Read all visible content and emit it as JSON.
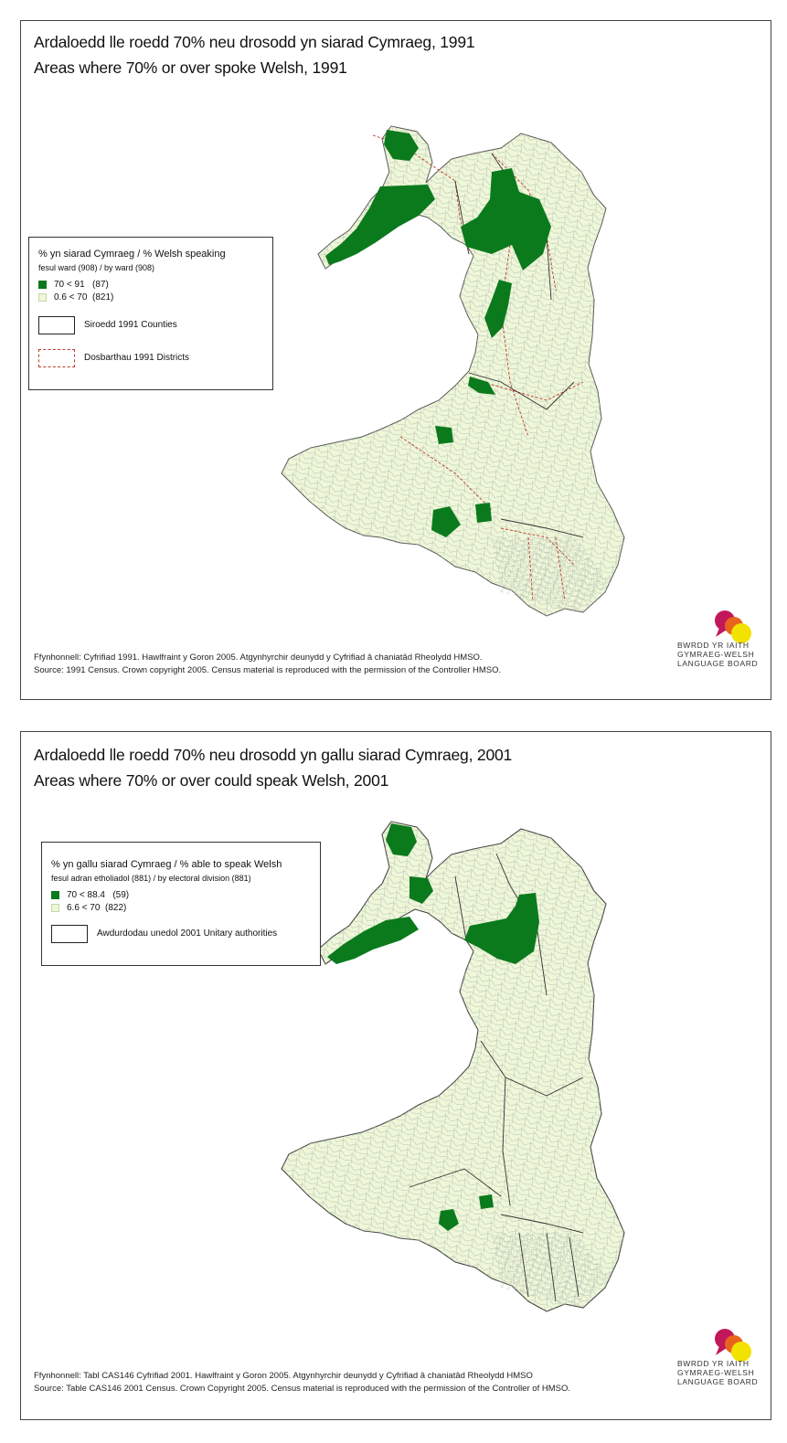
{
  "map_1991": {
    "title_cy": "Ardaloedd lle roedd 70% neu drosodd yn siarad Cymraeg, 1991",
    "title_en": "Areas where 70% or over spoke Welsh, 1991",
    "legend": {
      "title": "% yn siarad Cymraeg / % Welsh speaking",
      "subtitle": "fesul ward (908) / by ward (908)",
      "classes": [
        {
          "range": "70   < 91",
          "count": "(87)",
          "color": "#0b7a1d"
        },
        {
          "range": "0.6 < 70",
          "count": "(821)",
          "color": "#eef7d8"
        }
      ],
      "boundaries": [
        {
          "label": "Siroedd 1991 Counties",
          "style": "solid-black"
        },
        {
          "label": "Dosbarthau 1991 Districts",
          "style": "dashed-red"
        }
      ]
    },
    "source_cy": "Ffynhonnell: Cyfrifiad 1991. Hawlfraint y Goron 2005. Atgynhyrchir deunydd y Cyfrifiad â chaniatâd Rheolydd HMSO.",
    "source_en": "Source: 1991 Census. Crown copyright 2005. Census material is reproduced with the permission of the Controller HMSO."
  },
  "map_2001": {
    "title_cy": "Ardaloedd lle roedd 70% neu drosodd yn gallu siarad Cymraeg, 2001",
    "title_en": "Areas where 70% or over could speak Welsh, 2001",
    "legend": {
      "title": "% yn gallu siarad Cymraeg / % able to speak Welsh",
      "subtitle": "fesul adran etholiadol (881) / by electoral division (881)",
      "classes": [
        {
          "range": "70   < 88.4",
          "count": "(59)",
          "color": "#0b7a1d"
        },
        {
          "range": "6.6 < 70",
          "count": "(822)",
          "color": "#eef7d8"
        }
      ],
      "boundaries": [
        {
          "label": "Awdurdodau unedol 2001 Unitary authorities",
          "style": "solid-black"
        }
      ]
    },
    "source_cy": "Ffynhonnell: Tabl CAS146 Cyfrifiad 2001. Hawlfraint y Goron 2005. Atgynhyrchir deunydd y Cyfrifiad â chaniatâd Rheolydd HMSO",
    "source_en": "Source: Table CAS146 2001 Census. Crown Copyright 2005. Census material is reproduced with the permission of the Controller of HMSO."
  },
  "logo": {
    "lines": [
      "BWRDD YR IAITH",
      "GYMRAEG-WELSH",
      "LANGUAGE BOARD"
    ],
    "colors": {
      "magenta": "#c2185b",
      "orange": "#e8641e",
      "yellow": "#f2e200"
    }
  },
  "colors": {
    "land": "#eef7d8",
    "high_welsh": "#0b7a1d",
    "ward_lines": "#b9c4b6",
    "district_lines": "#c0392b",
    "county_lines": "#222222"
  }
}
